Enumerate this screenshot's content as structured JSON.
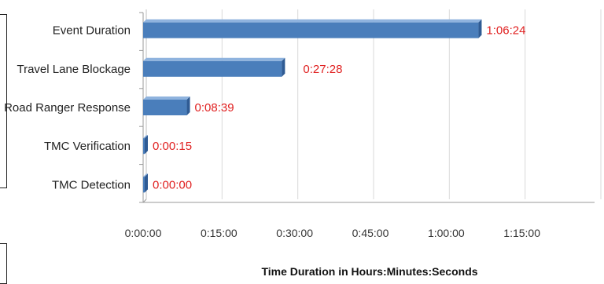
{
  "chart_data": {
    "type": "bar",
    "orientation": "horizontal",
    "categories": [
      "Event Duration",
      "Travel Lane Blockage",
      "Road Ranger Response",
      "TMC Verification",
      "TMC Detection"
    ],
    "values": [
      "1:06:24",
      "0:27:28",
      "0:08:39",
      "0:00:15",
      "0:00:00"
    ],
    "values_seconds": [
      3984,
      1648,
      519,
      15,
      0
    ],
    "xlim_seconds": [
      0,
      5400
    ],
    "xticks": [
      "0:00:00",
      "0:15:00",
      "0:30:00",
      "0:45:00",
      "1:00:00",
      "1:15:00"
    ],
    "xlabel": "Time Duration in Hours:Minutes:Seconds",
    "ylabel": "",
    "title": "",
    "grid": "vertical",
    "legend": "none",
    "colors": {
      "bar": "#4a7ebb",
      "bar_dark": "#2f5b94",
      "bar_light": "#8fb3de",
      "value_label": "#e02020",
      "grid": "#d9d9d9"
    }
  }
}
